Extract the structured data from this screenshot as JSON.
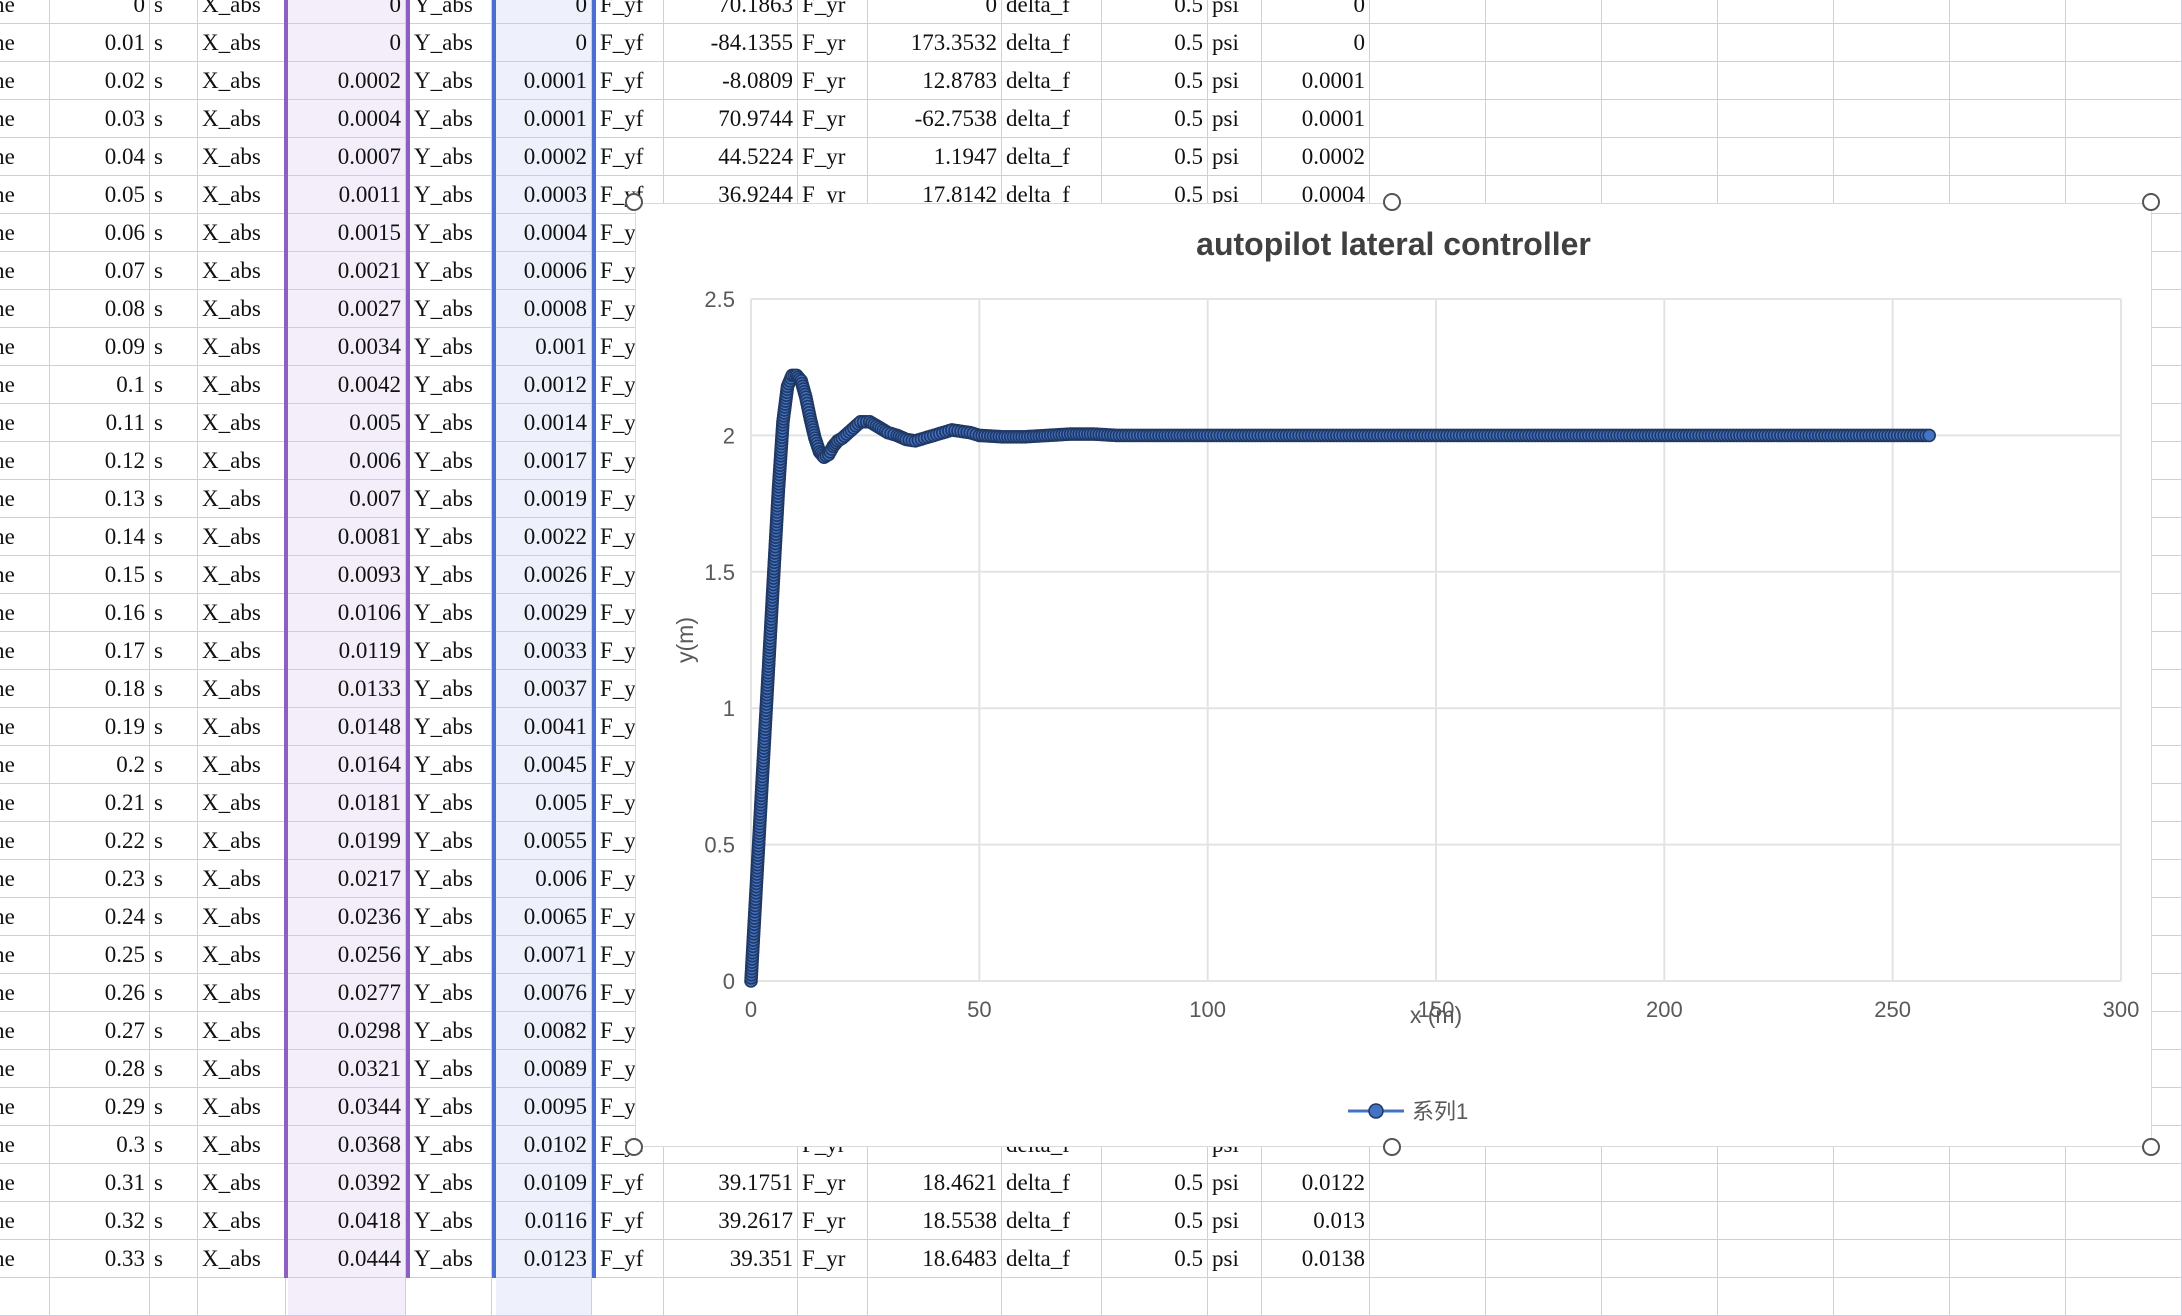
{
  "columns": {
    "time_label": "time",
    "unit": "s",
    "x_label": "X_abs",
    "y_label": "Y_abs",
    "fyf_label": "F_yf",
    "fyr_label": "F_yr",
    "delta_label": "delta_f",
    "psi_label": "psi"
  },
  "rows": [
    {
      "t": "0",
      "x": "0",
      "y": "0",
      "fyf": "70.1863",
      "fyr": "0",
      "delta": "0.5",
      "psi": "0"
    },
    {
      "t": "0.01",
      "x": "0",
      "y": "0",
      "fyf": "-84.1355",
      "fyr": "173.3532",
      "delta": "0.5",
      "psi": "0"
    },
    {
      "t": "0.02",
      "x": "0.0002",
      "y": "0.0001",
      "fyf": "-8.0809",
      "fyr": "12.8783",
      "delta": "0.5",
      "psi": "0.0001"
    },
    {
      "t": "0.03",
      "x": "0.0004",
      "y": "0.0001",
      "fyf": "70.9744",
      "fyr": "-62.7538",
      "delta": "0.5",
      "psi": "0.0001"
    },
    {
      "t": "0.04",
      "x": "0.0007",
      "y": "0.0002",
      "fyf": "44.5224",
      "fyr": "1.1947",
      "delta": "0.5",
      "psi": "0.0002"
    },
    {
      "t": "0.05",
      "x": "0.0011",
      "y": "0.0003",
      "fyf": "36.9244",
      "fyr": "17.8142",
      "delta": "0.5",
      "psi": "0.0004"
    },
    {
      "t": "0.06",
      "x": "0.0015",
      "y": "0.0004"
    },
    {
      "t": "0.07",
      "x": "0.0021",
      "y": "0.0006"
    },
    {
      "t": "0.08",
      "x": "0.0027",
      "y": "0.0008"
    },
    {
      "t": "0.09",
      "x": "0.0034",
      "y": "0.001"
    },
    {
      "t": "0.1",
      "x": "0.0042",
      "y": "0.0012"
    },
    {
      "t": "0.11",
      "x": "0.005",
      "y": "0.0014"
    },
    {
      "t": "0.12",
      "x": "0.006",
      "y": "0.0017"
    },
    {
      "t": "0.13",
      "x": "0.007",
      "y": "0.0019"
    },
    {
      "t": "0.14",
      "x": "0.0081",
      "y": "0.0022"
    },
    {
      "t": "0.15",
      "x": "0.0093",
      "y": "0.0026"
    },
    {
      "t": "0.16",
      "x": "0.0106",
      "y": "0.0029"
    },
    {
      "t": "0.17",
      "x": "0.0119",
      "y": "0.0033"
    },
    {
      "t": "0.18",
      "x": "0.0133",
      "y": "0.0037"
    },
    {
      "t": "0.19",
      "x": "0.0148",
      "y": "0.0041"
    },
    {
      "t": "0.2",
      "x": "0.0164",
      "y": "0.0045"
    },
    {
      "t": "0.21",
      "x": "0.0181",
      "y": "0.005"
    },
    {
      "t": "0.22",
      "x": "0.0199",
      "y": "0.0055"
    },
    {
      "t": "0.23",
      "x": "0.0217",
      "y": "0.006"
    },
    {
      "t": "0.24",
      "x": "0.0236",
      "y": "0.0065"
    },
    {
      "t": "0.25",
      "x": "0.0256",
      "y": "0.0071"
    },
    {
      "t": "0.26",
      "x": "0.0277",
      "y": "0.0076"
    },
    {
      "t": "0.27",
      "x": "0.0298",
      "y": "0.0082"
    },
    {
      "t": "0.28",
      "x": "0.0321",
      "y": "0.0089"
    },
    {
      "t": "0.29",
      "x": "0.0344",
      "y": "0.0095"
    },
    {
      "t": "0.3",
      "x": "0.0368",
      "y": "0.0102"
    },
    {
      "t": "0.31",
      "x": "0.0392",
      "y": "0.0109",
      "fyf": "39.1751",
      "fyr": "18.4621",
      "delta": "0.5",
      "psi": "0.0122"
    },
    {
      "t": "0.32",
      "x": "0.0418",
      "y": "0.0116",
      "fyf": "39.2617",
      "fyr": "18.5538",
      "delta": "0.5",
      "psi": "0.013"
    },
    {
      "t": "0.33",
      "x": "0.0444",
      "y": "0.0123",
      "fyf": "39.351",
      "fyr": "18.6483",
      "delta": "0.5",
      "psi": "0.0138"
    }
  ],
  "colors": {
    "x_col_line": "#8e5fc2",
    "y_col_line": "#4a6fd1",
    "grid": "#c9cfe6",
    "series": "#4472c4",
    "series_edge": "#1f3864"
  },
  "chart_data": {
    "type": "scatter",
    "title": "autopilot lateral controller",
    "xlabel": "x (m)",
    "ylabel": "y(m)",
    "xlim": [
      0,
      300
    ],
    "ylim": [
      0,
      2.5
    ],
    "xticks": [
      "0",
      "50",
      "100",
      "150",
      "200",
      "250",
      "300"
    ],
    "yticks": [
      "0",
      "0.5",
      "1",
      "1.5",
      "2",
      "2.5"
    ],
    "grid": true,
    "legend_position": "bottom",
    "series": [
      {
        "name": "系列1",
        "x": [
          0,
          1,
          2,
          3,
          4,
          5,
          6,
          7,
          8,
          9,
          10,
          11,
          12,
          13,
          14,
          15,
          16,
          17,
          18,
          19,
          20,
          22,
          24,
          26,
          28,
          30,
          32,
          34,
          36,
          38,
          40,
          42,
          44,
          46,
          48,
          50,
          55,
          60,
          65,
          70,
          75,
          80,
          90,
          100,
          120,
          140,
          160,
          180,
          200,
          220,
          240,
          258
        ],
        "y": [
          0,
          0.3,
          0.6,
          0.9,
          1.2,
          1.5,
          1.8,
          2.05,
          2.18,
          2.22,
          2.22,
          2.2,
          2.14,
          2.06,
          1.99,
          1.94,
          1.92,
          1.93,
          1.96,
          1.98,
          1.99,
          2.02,
          2.05,
          2.05,
          2.03,
          2.01,
          2.0,
          1.985,
          1.98,
          1.99,
          2.0,
          2.01,
          2.02,
          2.015,
          2.01,
          2.0,
          1.995,
          1.995,
          2.0,
          2.005,
          2.005,
          2.0,
          2.0,
          2.0,
          2.0,
          2.0,
          2.0,
          2.0,
          2.0,
          2.0,
          2.0,
          2.0
        ]
      }
    ]
  }
}
